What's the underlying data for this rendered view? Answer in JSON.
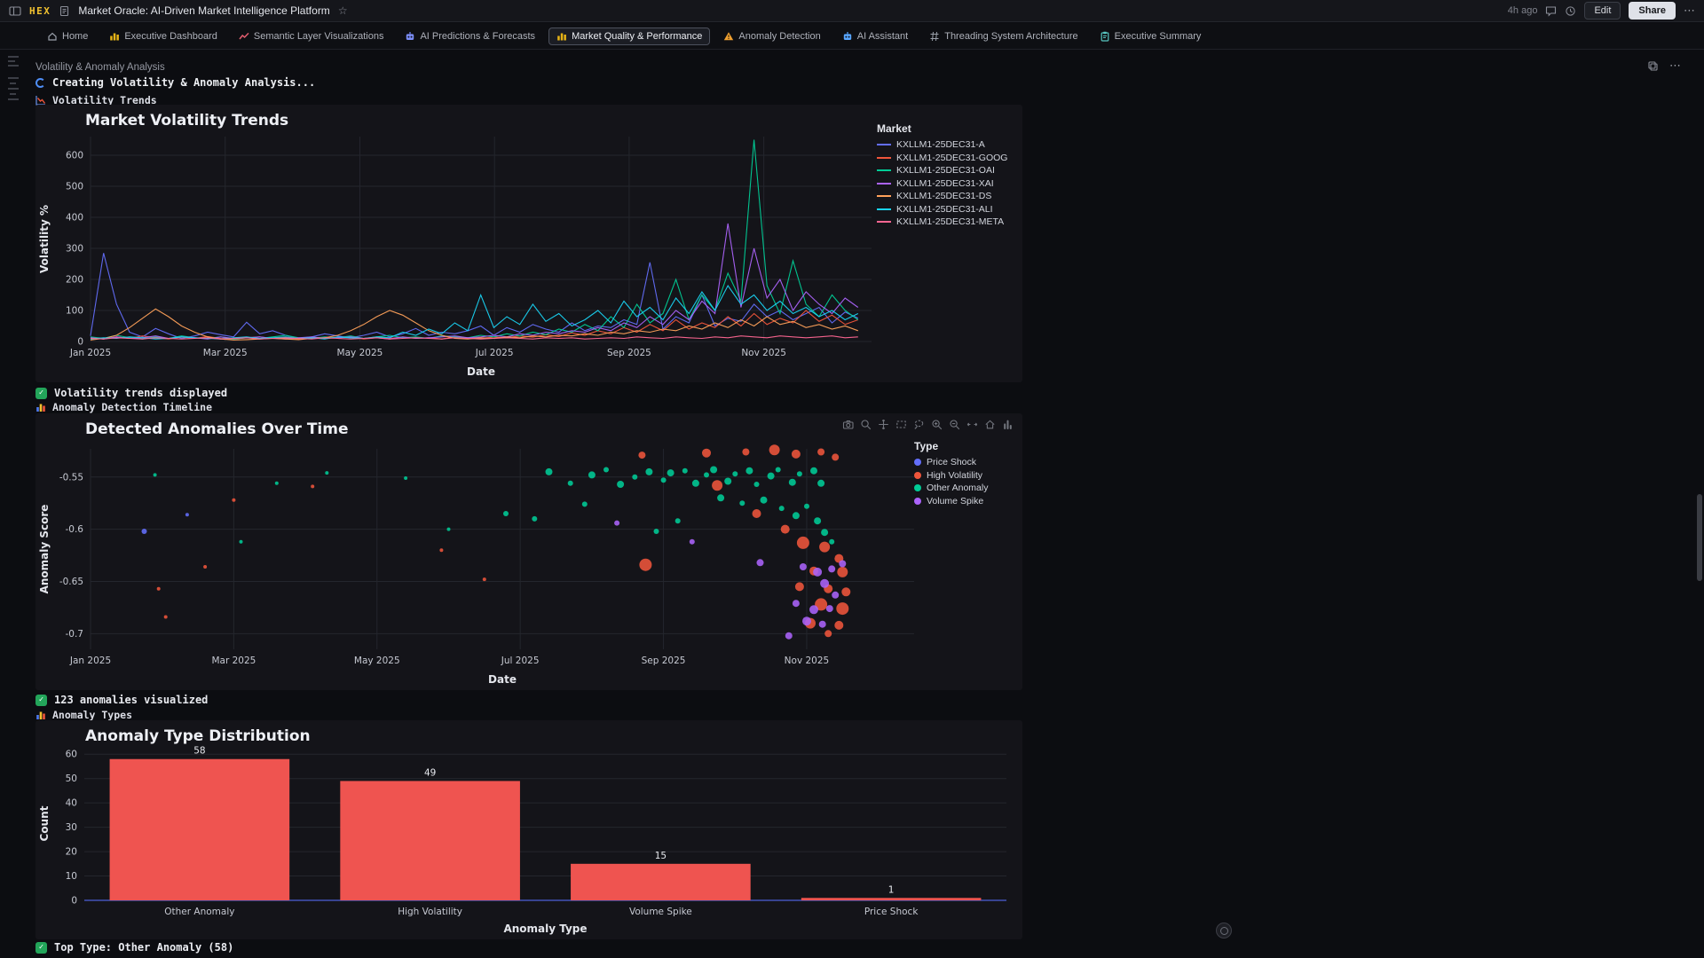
{
  "app": {
    "topbar": {
      "logo": "HEX",
      "title": "Market Oracle: AI-Driven Market Intelligence Platform",
      "timestamp": "4h ago",
      "edit_label": "Edit",
      "share_label": "Share"
    },
    "tabs": [
      {
        "label": "Home",
        "icon": "home",
        "color": "#9aa0aa",
        "active": false
      },
      {
        "label": "Executive Dashboard",
        "icon": "bars",
        "color": "#e7b416",
        "active": false
      },
      {
        "label": "Semantic Layer Visualizations",
        "icon": "line",
        "color": "#e05c6e",
        "active": false
      },
      {
        "label": "AI Predictions & Forecasts",
        "icon": "robot",
        "color": "#7a8cf8",
        "active": false
      },
      {
        "label": "Market Quality & Performance",
        "icon": "bars",
        "color": "#e7b416",
        "active": true
      },
      {
        "label": "Anomaly Detection",
        "icon": "warn",
        "color": "#f0a030",
        "active": false
      },
      {
        "label": "AI Assistant",
        "icon": "robot",
        "color": "#58a6ff",
        "active": false
      },
      {
        "label": "Threading System Architecture",
        "icon": "thread",
        "color": "#9aa0aa",
        "active": false
      },
      {
        "label": "Executive Summary",
        "icon": "clipboard",
        "color": "#58c5c0",
        "active": false
      }
    ],
    "section": {
      "title": "Volatility & Anomaly Analysis"
    },
    "cells": {
      "volatility_label": "Volatility Trends",
      "anomaly_timeline_label": "Anomaly Detection Timeline",
      "anomaly_types_label": "Anomaly Types"
    },
    "outputs": {
      "creating": "Creating Volatility & Anomaly Analysis...",
      "volatility_done": "Volatility trends displayed",
      "anomalies_done": "123 anomalies visualized",
      "types_done": "Top Type: Other Anomaly (58)"
    },
    "modebar_icons": [
      "camera",
      "zoom",
      "pan",
      "box-select",
      "lasso",
      "zoom-in",
      "zoom-out",
      "autoscale",
      "reset-axes",
      "plotly-logo"
    ]
  },
  "chart_data": [
    {
      "id": "volatility_trends",
      "type": "line",
      "title": "Market Volatility Trends",
      "xlabel": "Date",
      "ylabel": "Volatility %",
      "legend_title": "Market",
      "x_ticks": [
        {
          "pos": 0,
          "label": "Jan 2025"
        },
        {
          "pos": 2,
          "label": "Mar 2025"
        },
        {
          "pos": 4,
          "label": "May 2025"
        },
        {
          "pos": 6,
          "label": "Jul 2025"
        },
        {
          "pos": 8,
          "label": "Sep 2025"
        },
        {
          "pos": 10,
          "label": "Nov 2025"
        }
      ],
      "x_max": 11.6,
      "x_data_end": 11.4,
      "y_min": 0,
      "y_max": 660,
      "y_ticks": [
        0,
        100,
        200,
        300,
        400,
        500,
        600
      ],
      "grid": true,
      "legend_position": "right",
      "series": [
        {
          "name": "KXLLM1-25DEC31-A",
          "color": "#636efa",
          "values": [
            18,
            285,
            120,
            30,
            15,
            42,
            25,
            10,
            18,
            30,
            22,
            15,
            62,
            25,
            35,
            20,
            10,
            15,
            25,
            18,
            12,
            20,
            30,
            15,
            25,
            42,
            20,
            30,
            25,
            35,
            50,
            20,
            45,
            30,
            55,
            40,
            30,
            60,
            35,
            50,
            45,
            70,
            55,
            255,
            40,
            80,
            60,
            150,
            50,
            75,
            65,
            120,
            80,
            100,
            70,
            90,
            110,
            60,
            95,
            75
          ]
        },
        {
          "name": "KXLLM1-25DEC31-GOOG",
          "color": "#ef553b",
          "values": [
            12,
            8,
            15,
            10,
            18,
            12,
            8,
            14,
            10,
            16,
            10,
            8,
            12,
            15,
            10,
            12,
            8,
            14,
            10,
            12,
            15,
            8,
            12,
            10,
            14,
            10,
            12,
            8,
            15,
            12,
            10,
            14,
            12,
            18,
            14,
            22,
            16,
            28,
            20,
            35,
            25,
            45,
            30,
            55,
            35,
            70,
            40,
            60,
            45,
            80,
            50,
            90,
            55,
            75,
            60,
            100,
            65,
            85,
            55,
            70
          ]
        },
        {
          "name": "KXLLM1-25DEC31-OAI",
          "color": "#00cc96",
          "values": [
            15,
            10,
            20,
            12,
            8,
            15,
            10,
            18,
            12,
            10,
            15,
            8,
            12,
            10,
            15,
            20,
            12,
            10,
            15,
            12,
            18,
            10,
            15,
            20,
            12,
            15,
            10,
            18,
            15,
            12,
            20,
            15,
            25,
            18,
            30,
            22,
            40,
            30,
            55,
            35,
            80,
            45,
            120,
            60,
            90,
            200,
            70,
            150,
            100,
            220,
            130,
            650,
            180,
            90,
            260,
            120,
            80,
            150,
            100,
            70
          ]
        },
        {
          "name": "KXLLM1-25DEC31-XAI",
          "color": "#ab63fa",
          "values": [
            12,
            8,
            15,
            10,
            12,
            18,
            10,
            15,
            12,
            8,
            15,
            10,
            12,
            15,
            10,
            8,
            12,
            15,
            10,
            12,
            15,
            10,
            12,
            8,
            15,
            10,
            12,
            15,
            18,
            12,
            15,
            20,
            15,
            25,
            20,
            30,
            25,
            35,
            30,
            45,
            35,
            60,
            45,
            80,
            55,
            100,
            70,
            130,
            90,
            380,
            110,
            300,
            140,
            200,
            100,
            160,
            120,
            90,
            140,
            110
          ]
        },
        {
          "name": "KXLLM1-25DEC31-DS",
          "color": "#ffa15a",
          "values": [
            5,
            10,
            20,
            45,
            75,
            105,
            80,
            50,
            30,
            15,
            8,
            5,
            6,
            8,
            10,
            8,
            6,
            10,
            12,
            20,
            35,
            55,
            80,
            100,
            85,
            60,
            35,
            20,
            10,
            8,
            12,
            10,
            15,
            12,
            18,
            15,
            20,
            18,
            25,
            20,
            30,
            25,
            35,
            30,
            40,
            35,
            50,
            40,
            60,
            45,
            70,
            50,
            80,
            55,
            65,
            45,
            55,
            40,
            50,
            35
          ]
        },
        {
          "name": "KXLLM1-25DEC31-ALI",
          "color": "#19d3f3",
          "values": [
            8,
            12,
            10,
            15,
            12,
            8,
            10,
            15,
            12,
            10,
            8,
            12,
            15,
            10,
            12,
            15,
            10,
            12,
            8,
            15,
            12,
            10,
            15,
            12,
            30,
            20,
            40,
            25,
            60,
            35,
            150,
            45,
            80,
            55,
            120,
            65,
            90,
            50,
            70,
            100,
            60,
            130,
            80,
            110,
            70,
            140,
            90,
            160,
            100,
            180,
            120,
            150,
            100,
            130,
            90,
            110,
            80,
            100,
            70,
            90
          ]
        },
        {
          "name": "KXLLM1-25DEC31-META",
          "color": "#ff6692",
          "values": [
            10,
            8,
            12,
            10,
            8,
            12,
            10,
            8,
            10,
            12,
            8,
            10,
            12,
            8,
            10,
            12,
            10,
            8,
            12,
            10,
            8,
            10,
            12,
            8,
            10,
            12,
            10,
            8,
            12,
            10,
            8,
            10,
            12,
            10,
            8,
            12,
            10,
            12,
            8,
            10,
            12,
            10,
            15,
            12,
            10,
            15,
            12,
            10,
            15,
            12,
            18,
            15,
            12,
            18,
            15,
            12,
            15,
            18,
            12,
            15
          ]
        }
      ]
    },
    {
      "id": "anomaly_timeline",
      "type": "scatter",
      "title": "Detected Anomalies Over Time",
      "xlabel": "Date",
      "ylabel": "Anomaly Score",
      "legend_title": "Type",
      "x_ticks": [
        {
          "pos": 0,
          "label": "Jan 2025"
        },
        {
          "pos": 2,
          "label": "Mar 2025"
        },
        {
          "pos": 4,
          "label": "May 2025"
        },
        {
          "pos": 6,
          "label": "Jul 2025"
        },
        {
          "pos": 8,
          "label": "Sep 2025"
        },
        {
          "pos": 10,
          "label": "Nov 2025"
        }
      ],
      "x_max": 11.5,
      "y_min": -0.715,
      "y_max": -0.523,
      "y_ticks": [
        -0.55,
        -0.6,
        -0.65,
        -0.7
      ],
      "grid": true,
      "legend_position": "right",
      "groups": [
        {
          "name": "Price Shock",
          "color": "#636efa"
        },
        {
          "name": "High Volatility",
          "color": "#ef553b"
        },
        {
          "name": "Other Anomaly",
          "color": "#00cc96"
        },
        {
          "name": "Volume Spike",
          "color": "#ab63fa"
        }
      ],
      "points": [
        [
          6.4,
          -0.545,
          4,
          2
        ],
        [
          6.7,
          -0.556,
          3,
          2
        ],
        [
          7.0,
          -0.548,
          4,
          2
        ],
        [
          7.2,
          -0.543,
          3,
          2
        ],
        [
          7.4,
          -0.557,
          4,
          2
        ],
        [
          7.6,
          -0.55,
          3,
          2
        ],
        [
          7.8,
          -0.545,
          4,
          2
        ],
        [
          8.0,
          -0.553,
          3,
          2
        ],
        [
          8.1,
          -0.546,
          4,
          2
        ],
        [
          8.3,
          -0.544,
          3,
          2
        ],
        [
          8.45,
          -0.556,
          4,
          2
        ],
        [
          8.6,
          -0.548,
          3,
          2
        ],
        [
          8.7,
          -0.543,
          4,
          2
        ],
        [
          8.9,
          -0.554,
          4,
          2
        ],
        [
          9.0,
          -0.547,
          3,
          2
        ],
        [
          9.2,
          -0.544,
          4,
          2
        ],
        [
          9.3,
          -0.557,
          3,
          2
        ],
        [
          9.5,
          -0.549,
          4,
          2
        ],
        [
          9.6,
          -0.543,
          3,
          2
        ],
        [
          9.8,
          -0.555,
          4,
          2
        ],
        [
          9.9,
          -0.547,
          3,
          2
        ],
        [
          10.1,
          -0.544,
          4,
          2
        ],
        [
          10.2,
          -0.556,
          4,
          2
        ],
        [
          8.8,
          -0.57,
          4,
          2
        ],
        [
          9.1,
          -0.575,
          3,
          2
        ],
        [
          9.4,
          -0.572,
          4,
          2
        ],
        [
          9.65,
          -0.58,
          3,
          2
        ],
        [
          9.85,
          -0.587,
          4,
          2
        ],
        [
          10.0,
          -0.578,
          3,
          2
        ],
        [
          10.15,
          -0.592,
          4,
          2
        ],
        [
          10.25,
          -0.603,
          4,
          2
        ],
        [
          10.35,
          -0.612,
          3,
          2
        ],
        [
          8.2,
          -0.592,
          3,
          2
        ],
        [
          7.9,
          -0.602,
          3,
          2
        ],
        [
          6.9,
          -0.576,
          3,
          2
        ],
        [
          6.2,
          -0.59,
          3,
          2
        ],
        [
          5.8,
          -0.585,
          3,
          2
        ],
        [
          0.9,
          -0.548,
          2,
          2
        ],
        [
          2.6,
          -0.556,
          2,
          2
        ],
        [
          3.3,
          -0.546,
          2,
          2
        ],
        [
          4.4,
          -0.551,
          2,
          2
        ],
        [
          2.1,
          -0.612,
          2,
          2
        ],
        [
          5.0,
          -0.6,
          2,
          2
        ],
        [
          7.7,
          -0.529,
          4,
          1
        ],
        [
          8.6,
          -0.527,
          5,
          1
        ],
        [
          9.15,
          -0.526,
          4,
          1
        ],
        [
          9.55,
          -0.524,
          6,
          1
        ],
        [
          9.85,
          -0.528,
          5,
          1
        ],
        [
          10.2,
          -0.526,
          4,
          1
        ],
        [
          10.4,
          -0.531,
          4,
          1
        ],
        [
          8.75,
          -0.558,
          6,
          1
        ],
        [
          9.3,
          -0.585,
          5,
          1
        ],
        [
          9.7,
          -0.6,
          5,
          1
        ],
        [
          9.95,
          -0.613,
          7,
          1
        ],
        [
          10.25,
          -0.617,
          6,
          1
        ],
        [
          10.45,
          -0.628,
          5,
          1
        ],
        [
          10.1,
          -0.64,
          5,
          1
        ],
        [
          10.5,
          -0.641,
          6,
          1
        ],
        [
          9.9,
          -0.655,
          5,
          1
        ],
        [
          10.3,
          -0.657,
          5,
          1
        ],
        [
          10.55,
          -0.66,
          5,
          1
        ],
        [
          10.2,
          -0.672,
          7,
          1
        ],
        [
          10.5,
          -0.676,
          7,
          1
        ],
        [
          10.05,
          -0.69,
          6,
          1
        ],
        [
          10.45,
          -0.692,
          5,
          1
        ],
        [
          10.3,
          -0.7,
          4,
          1
        ],
        [
          7.75,
          -0.634,
          7,
          1
        ],
        [
          2.0,
          -0.572,
          2,
          1
        ],
        [
          3.1,
          -0.559,
          2,
          1
        ],
        [
          1.6,
          -0.636,
          2,
          1
        ],
        [
          0.95,
          -0.657,
          2,
          1
        ],
        [
          1.05,
          -0.684,
          2,
          1
        ],
        [
          4.9,
          -0.62,
          2,
          1
        ],
        [
          5.5,
          -0.648,
          2,
          1
        ],
        [
          9.35,
          -0.632,
          4,
          3
        ],
        [
          9.95,
          -0.636,
          4,
          3
        ],
        [
          10.15,
          -0.641,
          5,
          3
        ],
        [
          10.35,
          -0.638,
          4,
          3
        ],
        [
          10.5,
          -0.633,
          4,
          3
        ],
        [
          10.25,
          -0.652,
          5,
          3
        ],
        [
          10.4,
          -0.663,
          4,
          3
        ],
        [
          9.85,
          -0.671,
          4,
          3
        ],
        [
          10.1,
          -0.677,
          5,
          3
        ],
        [
          10.32,
          -0.676,
          4,
          3
        ],
        [
          10.0,
          -0.688,
          5,
          3
        ],
        [
          10.22,
          -0.691,
          4,
          3
        ],
        [
          9.75,
          -0.702,
          4,
          3
        ],
        [
          8.4,
          -0.612,
          3,
          3
        ],
        [
          7.35,
          -0.594,
          3,
          3
        ],
        [
          0.75,
          -0.602,
          3,
          0
        ],
        [
          1.35,
          -0.586,
          2,
          0
        ]
      ]
    },
    {
      "id": "anomaly_types",
      "type": "bar",
      "title": "Anomaly Type Distribution",
      "xlabel": "Anomaly Type",
      "ylabel": "Count",
      "categories": [
        "Other Anomaly",
        "High Volatility",
        "Volume Spike",
        "Price Shock"
      ],
      "values": [
        58,
        49,
        15,
        1
      ],
      "bar_color": "#ef5450",
      "y_min": 0,
      "y_max": 63,
      "y_ticks": [
        0,
        10,
        20,
        30,
        40,
        50,
        60
      ],
      "grid": true
    }
  ]
}
